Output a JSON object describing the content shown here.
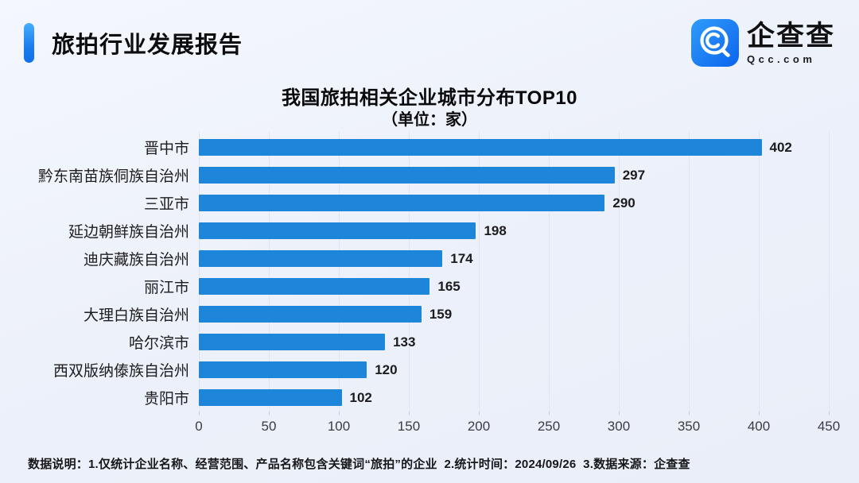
{
  "header": {
    "title": "旅拍行业发展报告",
    "logo": {
      "name": "企查查",
      "domain": "Qcc.com"
    }
  },
  "chart_data": {
    "type": "bar",
    "orientation": "horizontal",
    "title": "我国旅拍相关企业城市分布TOP10",
    "subtitle": "（单位：家）",
    "categories": [
      "晋中市",
      "黔东南苗族侗族自治州",
      "三亚市",
      "延边朝鲜族自治州",
      "迪庆藏族自治州",
      "丽江市",
      "大理白族自治州",
      "哈尔滨市",
      "西双版纳傣族自治州",
      "贵阳市"
    ],
    "values": [
      402,
      297,
      290,
      198,
      174,
      165,
      159,
      133,
      120,
      102
    ],
    "unit": "家",
    "xlim": [
      0,
      450
    ],
    "xticks": [
      0,
      50,
      100,
      150,
      200,
      250,
      300,
      350,
      400,
      450
    ],
    "grid": true,
    "legend": "none",
    "bar_color": "#1e86da"
  },
  "footer": {
    "note": "数据说明：1.仅统计企业名称、经营范围、产品名称包含关键词“旅拍”的企业  2.统计时间：2024/09/26  3.数据来源：企查查"
  }
}
